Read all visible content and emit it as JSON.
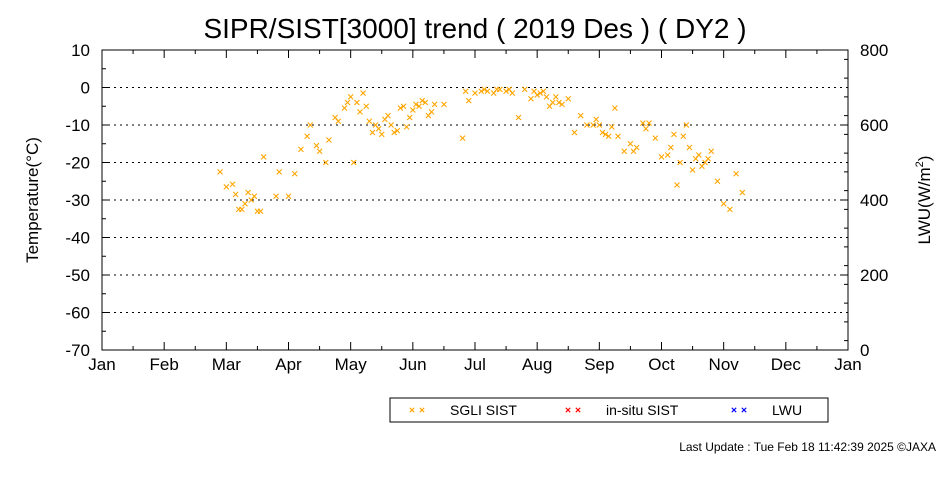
{
  "chart_data": {
    "type": "scatter",
    "title": "SIPR/SIST[3000] trend ( 2019 Des ) ( DY2 )",
    "ylabel": "Temperature(°C)",
    "y2label": "LWU(W/m",
    "y2label_sup": "2",
    "y2label_end": ")",
    "ylim": [
      -70,
      10
    ],
    "y2lim": [
      0,
      800
    ],
    "yticks": [
      "10",
      "0",
      "-10",
      "-20",
      "-30",
      "-40",
      "-50",
      "-60",
      "-70"
    ],
    "y2ticks": [
      "800",
      "600",
      "400",
      "200",
      "0"
    ],
    "months": [
      "Jan",
      "Feb",
      "Mar",
      "Apr",
      "May",
      "Jun",
      "Jul",
      "Aug",
      "Sep",
      "Oct",
      "Nov",
      "Dec",
      "Jan"
    ],
    "grid": "horizontal dotted",
    "colors": {
      "sgli": "#ffa500",
      "insitu": "#ff0000",
      "lwu": "#0000ff"
    },
    "series": [
      {
        "name": "SGLI SIST",
        "marker": "x",
        "x": [
          1.9,
          2.0,
          2.1,
          2.15,
          2.2,
          2.25,
          2.3,
          2.35,
          2.4,
          2.45,
          2.5,
          2.55,
          2.6,
          2.8,
          2.85,
          3.0,
          3.1,
          3.2,
          3.3,
          3.35,
          3.45,
          3.5,
          3.6,
          3.65,
          3.75,
          3.8,
          3.9,
          3.95,
          4.0,
          4.05,
          4.1,
          4.15,
          4.2,
          4.25,
          4.3,
          4.35,
          4.4,
          4.45,
          4.5,
          4.55,
          4.6,
          4.65,
          4.7,
          4.75,
          4.8,
          4.85,
          4.9,
          4.95,
          5.0,
          5.05,
          5.1,
          5.15,
          5.2,
          5.25,
          5.3,
          5.35,
          5.5,
          5.8,
          5.85,
          5.9,
          6.0,
          6.1,
          6.15,
          6.2,
          6.3,
          6.35,
          6.4,
          6.5,
          6.55,
          6.6,
          6.7,
          6.8,
          6.9,
          6.95,
          7.0,
          7.05,
          7.1,
          7.15,
          7.2,
          7.25,
          7.3,
          7.35,
          7.4,
          7.5,
          7.6,
          7.7,
          7.8,
          7.9,
          7.95,
          8.0,
          8.05,
          8.1,
          8.15,
          8.2,
          8.25,
          8.3,
          8.4,
          8.5,
          8.55,
          8.6,
          8.7,
          8.75,
          8.8,
          8.9,
          9.0,
          9.1,
          9.15,
          9.2,
          9.25,
          9.3,
          9.35,
          9.4,
          9.45,
          9.5,
          9.55,
          9.6,
          9.65,
          9.7,
          9.75,
          9.8,
          9.9,
          10.0,
          10.1,
          10.2,
          10.3
        ],
        "y": [
          -22.5,
          -26.5,
          -25.8,
          -28.5,
          -32.5,
          -32.5,
          -31,
          -28,
          -30,
          -29,
          -33,
          -33,
          -18.5,
          -29,
          -22.5,
          -29,
          -23,
          -16.5,
          -13,
          -10,
          -15.5,
          -17,
          -20,
          -14,
          -8,
          -9,
          -5.5,
          -4,
          -2.5,
          -20,
          -4,
          -6.5,
          -1.5,
          -5,
          -9,
          -12,
          -10,
          -11,
          -12.5,
          -8.5,
          -7.5,
          -10,
          -12,
          -11.5,
          -5.5,
          -5,
          -10.5,
          -8,
          -6,
          -4.5,
          -5,
          -3.5,
          -4,
          -7.5,
          -6.5,
          -4.5,
          -4.5,
          -13.5,
          -1,
          -3.5,
          -1.5,
          -1,
          -0.5,
          -1,
          -1.5,
          -0.5,
          -0.5,
          -1,
          -0.5,
          -1.5,
          -8,
          -0.5,
          -3,
          -1,
          -2,
          -1.5,
          -1,
          -2.5,
          -5,
          -4,
          -2.5,
          -4,
          -4.5,
          -3,
          -12,
          -7.5,
          -10,
          -10,
          -8.5,
          -10,
          -12,
          -12.5,
          -13,
          -10.5,
          -5.5,
          -13,
          -17,
          -15,
          -17,
          -16,
          -9.5,
          -11,
          -9.5,
          -13.5,
          -18.5,
          -18,
          -16,
          -12.5,
          -26,
          -20,
          -13,
          -10,
          -16,
          -22,
          -19,
          -18,
          -21,
          -20,
          -19,
          -17,
          -25,
          -31,
          -32.5,
          -23,
          -28
        ]
      },
      {
        "name": "in-situ SIST",
        "marker": "x",
        "x": [],
        "y": []
      },
      {
        "name": "LWU",
        "marker": "x",
        "x": [],
        "y": []
      }
    ],
    "legend": [
      "SGLI SIST",
      "in-situ SIST",
      "LWU"
    ]
  },
  "footer": "Last Update : Tue Feb 18 11:42:39 2025  ©JAXA"
}
